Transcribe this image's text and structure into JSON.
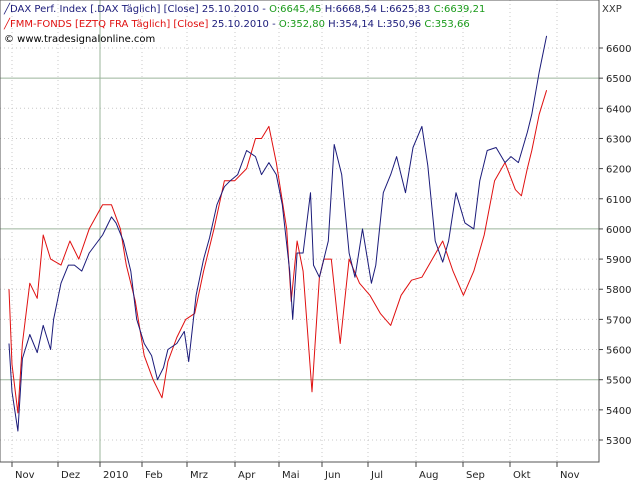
{
  "legend": {
    "dax": {
      "name": "DAX Perf. Index [.DAX  Täglich] [Close]",
      "date": "25.10.2010",
      "open": "O:6645,45",
      "high": "H:6668,54",
      "low": "L:6625,83",
      "close": "C:6639,21"
    },
    "fmm": {
      "name": "FMM-FONDS [EZTQ FRA  Täglich] [Close]",
      "date": "25.10.2010",
      "open": "O:352,80",
      "high": "H:354,14",
      "low": "L:350,96",
      "close": "C:353,66"
    }
  },
  "watermark": "© www.tradesignalonline.com",
  "unit_label": "XXP",
  "colors": {
    "dax": "#1b1b7a",
    "fmm": "#e01010",
    "grid_major": "#9bb59b",
    "grid_minor": "#c8c8c8",
    "ohlc_values": "#1a9a1a"
  },
  "chart_data": {
    "type": "line",
    "x_labels": [
      "Nov",
      "Dez",
      "2010",
      "Feb",
      "Mrz",
      "Apr",
      "Mai",
      "Jun",
      "Jul",
      "Aug",
      "Sep",
      "Okt",
      "Nov"
    ],
    "y_ticks": [
      5300,
      5400,
      5500,
      5600,
      5700,
      5800,
      5900,
      6000,
      6100,
      6200,
      6300,
      6400,
      6500,
      6600
    ],
    "ylim": [
      5220,
      6760
    ],
    "major_gridlines_y": [
      5500,
      6000,
      6500
    ],
    "grid": true,
    "series": [
      {
        "name": "DAX Perf. Index",
        "x": [
          "2009-10-28",
          "2009-10-30",
          "2009-11-03",
          "2009-11-06",
          "2009-11-11",
          "2009-11-16",
          "2009-11-20",
          "2009-11-25",
          "2009-11-27",
          "2009-12-02",
          "2009-12-07",
          "2009-12-11",
          "2009-12-16",
          "2009-12-21",
          "2009-12-30",
          "2010-01-05",
          "2010-01-08",
          "2010-01-13",
          "2010-01-18",
          "2010-01-22",
          "2010-01-27",
          "2010-02-01",
          "2010-02-05",
          "2010-02-09",
          "2010-02-12",
          "2010-02-18",
          "2010-02-23",
          "2010-02-26",
          "2010-03-03",
          "2010-03-08",
          "2010-03-12",
          "2010-03-17",
          "2010-03-22",
          "2010-03-26",
          "2010-03-31",
          "2010-04-06",
          "2010-04-12",
          "2010-04-16",
          "2010-04-21",
          "2010-04-26",
          "2010-04-30",
          "2010-05-05",
          "2010-05-07",
          "2010-05-10",
          "2010-05-14",
          "2010-05-19",
          "2010-05-21",
          "2010-05-25",
          "2010-05-31",
          "2010-06-04",
          "2010-06-09",
          "2010-06-14",
          "2010-06-18",
          "2010-06-23",
          "2010-06-29",
          "2010-07-02",
          "2010-07-07",
          "2010-07-12",
          "2010-07-16",
          "2010-07-22",
          "2010-07-27",
          "2010-08-02",
          "2010-08-06",
          "2010-08-11",
          "2010-08-16",
          "2010-08-20",
          "2010-08-25",
          "2010-08-31",
          "2010-09-06",
          "2010-09-10",
          "2010-09-15",
          "2010-09-21",
          "2010-09-27",
          "2010-10-01",
          "2010-10-06",
          "2010-10-12",
          "2010-10-15",
          "2010-10-20",
          "2010-10-25"
        ],
        "values": [
          5620,
          5460,
          5330,
          5570,
          5650,
          5590,
          5680,
          5600,
          5700,
          5820,
          5880,
          5880,
          5860,
          5920,
          5980,
          6040,
          6020,
          5960,
          5860,
          5700,
          5620,
          5580,
          5500,
          5540,
          5600,
          5620,
          5660,
          5560,
          5780,
          5900,
          5970,
          6080,
          6140,
          6160,
          6180,
          6260,
          6240,
          6180,
          6220,
          6180,
          6080,
          5860,
          5700,
          5920,
          5920,
          6120,
          5880,
          5840,
          5960,
          6280,
          6180,
          5920,
          5840,
          6000,
          5820,
          5880,
          6120,
          6180,
          6240,
          6120,
          6270,
          6340,
          6210,
          5960,
          5890,
          5960,
          6120,
          6020,
          6000,
          6160,
          6260,
          6270,
          6220,
          6240,
          6220,
          6320,
          6380,
          6520,
          6640
        ]
      },
      {
        "name": "FMM-FONDS",
        "x": [
          "2009-10-28",
          "2009-10-30",
          "2009-11-03",
          "2009-11-06",
          "2009-11-11",
          "2009-11-16",
          "2009-11-20",
          "2009-11-25",
          "2009-12-02",
          "2009-12-08",
          "2009-12-14",
          "2009-12-21",
          "2009-12-30",
          "2010-01-05",
          "2010-01-11",
          "2010-01-15",
          "2010-01-21",
          "2010-01-27",
          "2010-02-02",
          "2010-02-08",
          "2010-02-12",
          "2010-02-18",
          "2010-02-24",
          "2010-03-02",
          "2010-03-08",
          "2010-03-15",
          "2010-03-22",
          "2010-03-29",
          "2010-04-06",
          "2010-04-12",
          "2010-04-16",
          "2010-04-21",
          "2010-04-26",
          "2010-05-03",
          "2010-05-06",
          "2010-05-10",
          "2010-05-14",
          "2010-05-20",
          "2010-05-25",
          "2010-05-28",
          "2010-06-02",
          "2010-06-08",
          "2010-06-14",
          "2010-06-21",
          "2010-06-28",
          "2010-07-05",
          "2010-07-12",
          "2010-07-19",
          "2010-07-26",
          "2010-08-02",
          "2010-08-09",
          "2010-08-16",
          "2010-08-23",
          "2010-08-30",
          "2010-09-06",
          "2010-09-13",
          "2010-09-20",
          "2010-09-27",
          "2010-10-04",
          "2010-10-08",
          "2010-10-12",
          "2010-10-15",
          "2010-10-20",
          "2010-10-25"
        ],
        "values": [
          5800,
          5550,
          5390,
          5620,
          5820,
          5770,
          5980,
          5900,
          5880,
          5960,
          5900,
          6000,
          6080,
          6080,
          6000,
          5880,
          5760,
          5580,
          5500,
          5440,
          5560,
          5640,
          5700,
          5720,
          5860,
          6000,
          6160,
          6160,
          6200,
          6300,
          6300,
          6340,
          6220,
          6000,
          5760,
          5960,
          5860,
          5460,
          5840,
          5900,
          5900,
          5620,
          5900,
          5820,
          5780,
          5720,
          5680,
          5780,
          5830,
          5840,
          5900,
          5960,
          5860,
          5780,
          5860,
          5980,
          6160,
          6220,
          6130,
          6110,
          6200,
          6260,
          6380,
          6460
        ]
      }
    ]
  }
}
